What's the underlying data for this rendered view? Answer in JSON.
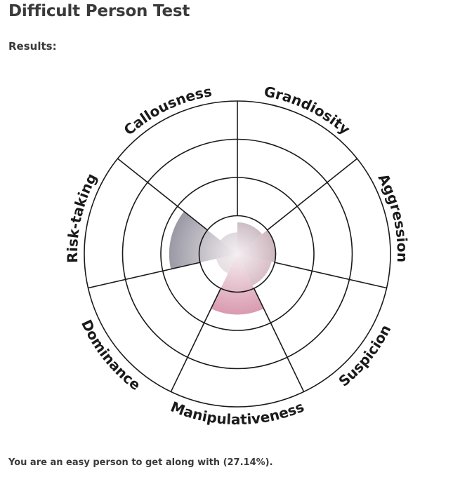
{
  "page": {
    "title": "Difficult Person Test",
    "results_label": "Results:",
    "summary": "You are an easy person to get along with (27.14%)."
  },
  "chart_data": {
    "type": "polar-area",
    "title": "",
    "categories": [
      "Grandiosity",
      "Aggression",
      "Suspicion",
      "Manipulativeness",
      "Dominance",
      "Risk-taking",
      "Callousness"
    ],
    "values": [
      38,
      46,
      42,
      73,
      26,
      82,
      26
    ],
    "range": [
      0,
      184
    ],
    "ring_levels": 4,
    "colors": [
      "#4a1a30",
      "#6a2538",
      "#8a3048",
      "#b8305e",
      "#9a8a92",
      "#3e4256",
      "#6a6c7e"
    ],
    "grid": true
  }
}
